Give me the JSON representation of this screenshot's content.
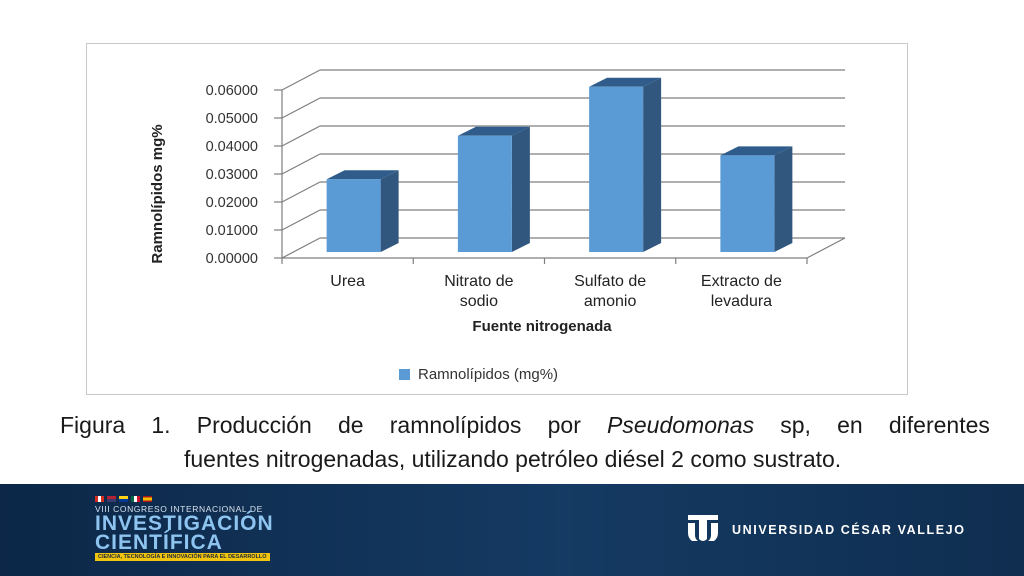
{
  "chart_data": {
    "type": "bar",
    "categories": [
      "Urea",
      "Nitrato de sodio",
      "Sulfato de amonio",
      "Extracto de levadura"
    ],
    "category_lines": [
      [
        "Urea"
      ],
      [
        "Nitrato de",
        "sodio"
      ],
      [
        "Sulfato de",
        "amonio"
      ],
      [
        "Extracto de",
        "levadura"
      ]
    ],
    "series": [
      {
        "name": "Ramnolípidos (mg%)",
        "values": [
          0.026,
          0.0415,
          0.059,
          0.0345
        ]
      }
    ],
    "xlabel": "Fuente nitrogenada",
    "ylabel": "Ramnolípidos mg%",
    "ylim": [
      0,
      0.06
    ],
    "yticks": [
      "0.00000",
      "0.01000",
      "0.02000",
      "0.03000",
      "0.04000",
      "0.05000",
      "0.06000"
    ],
    "grid": true,
    "legend_position": "bottom",
    "style": "3d",
    "colors": {
      "front": "#5b9bd5",
      "side": "#31577f",
      "top": "#2f5c8a"
    }
  },
  "caption": {
    "line1_parts": [
      "Figura",
      "1.",
      "Producción",
      "de",
      "ramnolípidos",
      "por",
      "Pseudomonas",
      "sp,",
      "en",
      "diferentes"
    ],
    "line2": "fuentes nitrogenadas, utilizando petróleo diésel 2 como sustrato."
  },
  "footer": {
    "congress_line": "VIII CONGRESO INTERNACIONAL DE",
    "title_line1": "INVESTIGACIÓN",
    "title_line2": "CIENTÍFICA",
    "tagline": "CIENCIA, TECNOLOGÍA E INNOVACIÓN PARA EL DESARROLLO",
    "university": "UNIVERSIDAD CÉSAR VALLEJO"
  }
}
